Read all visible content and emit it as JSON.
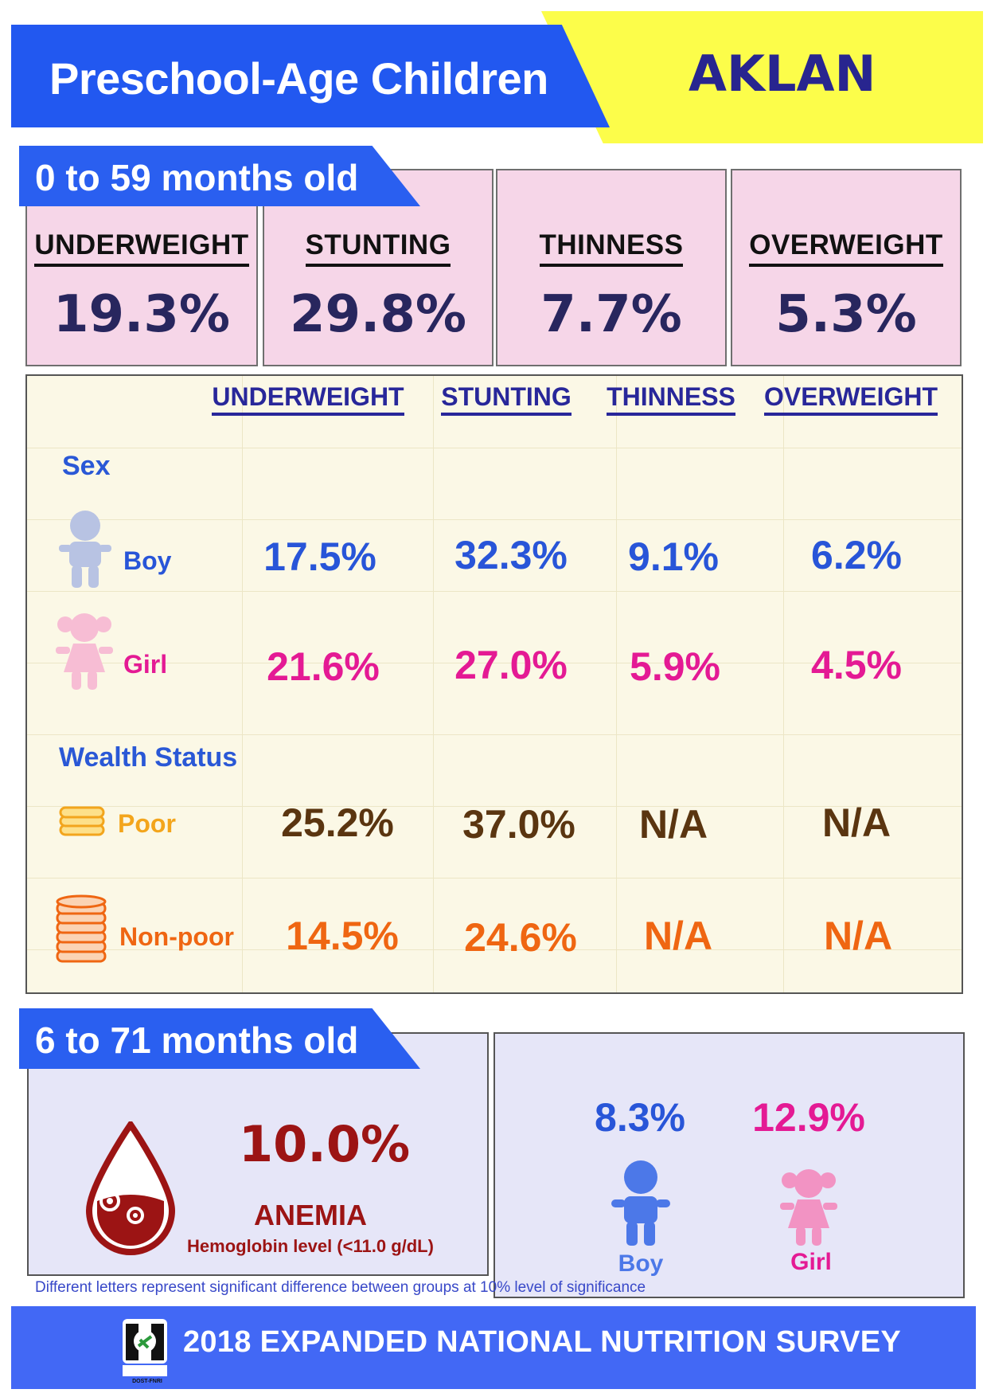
{
  "header": {
    "title": "Preschool-Age Children",
    "region": "AKLAN"
  },
  "section1": {
    "tab_label": "0 to 59 months old",
    "summary": [
      {
        "label": "UNDERWEIGHT",
        "value": "19.3%"
      },
      {
        "label": "STUNTING",
        "value": "29.8%"
      },
      {
        "label": "THINNESS",
        "value": "7.7%"
      },
      {
        "label": "OVERWEIGHT",
        "value": "5.3%"
      }
    ],
    "table": {
      "columns": [
        "UNDERWEIGHT",
        "STUNTING",
        "THINNESS",
        "OVERWEIGHT"
      ],
      "sex_label": "Sex",
      "wealth_label": "Wealth Status",
      "rows": [
        {
          "label": "Boy",
          "values": [
            "17.5%",
            "32.3%",
            "9.1%",
            "6.2%"
          ],
          "color": "#2855d8"
        },
        {
          "label": "Girl",
          "values": [
            "21.6%",
            "27.0%",
            "5.9%",
            "4.5%"
          ],
          "color": "#e41a94"
        },
        {
          "label": "Poor",
          "values": [
            "25.2%",
            "37.0%",
            "N/A",
            "N/A"
          ],
          "color": "#5a3510",
          "label_color": "#f3a51c"
        },
        {
          "label": "Non-poor",
          "values": [
            "14.5%",
            "24.6%",
            "N/A",
            "N/A"
          ],
          "color": "#ef6612",
          "label_color": "#ef6612"
        }
      ]
    }
  },
  "section2": {
    "tab_label": "6 to 71 months old",
    "anemia_value": "10.0%",
    "anemia_title": "ANEMIA",
    "anemia_sub": "Hemoglobin level (<11.0 g/dL)",
    "boy_value": "8.3%",
    "girl_value": "12.9%",
    "boy_label": "Boy",
    "girl_label": "Girl"
  },
  "footnote": "Different letters represent significant difference between groups at 10% level of significance",
  "footer": {
    "title": "2018 EXPANDED NATIONAL NUTRITION SURVEY",
    "logo_caption": "DOST-FNRI"
  },
  "colors": {
    "banner_blue": "#2258f0",
    "banner_yellow": "#fcfd4a",
    "summary_pink": "#f6d6e8",
    "table_cream": "#fbf8e6",
    "anemia_lavender": "#e6e6f8",
    "boy_blue": "#2855d8",
    "girl_pink": "#e41a94",
    "anemia_red": "#9c1414"
  }
}
